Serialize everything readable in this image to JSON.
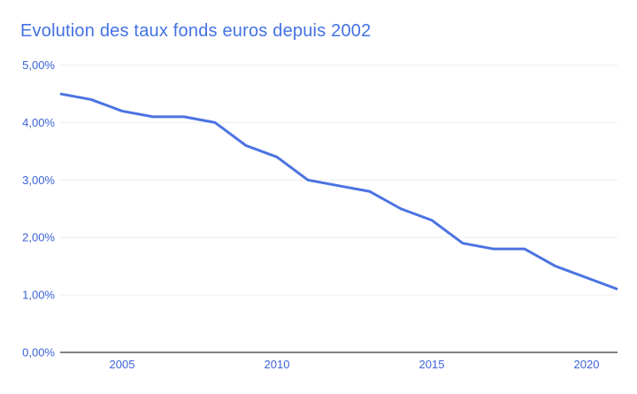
{
  "page": {
    "background": "#ffffff"
  },
  "chart": {
    "title": "Evolution des taux fonds euros depuis 2002",
    "title_color": "#4372e4"
  },
  "chart_data": {
    "type": "line",
    "title": "Evolution des taux fonds euros depuis 2002",
    "x": [
      2003,
      2004,
      2005,
      2006,
      2007,
      2008,
      2009,
      2010,
      2011,
      2012,
      2013,
      2014,
      2015,
      2016,
      2017,
      2018,
      2019,
      2020,
      2021
    ],
    "values": [
      4.5,
      4.4,
      4.2,
      4.1,
      4.1,
      4.0,
      3.6,
      3.4,
      3.0,
      2.9,
      2.8,
      2.5,
      2.3,
      1.9,
      1.8,
      1.8,
      1.5,
      1.3,
      1.1
    ],
    "xlabel": "",
    "ylabel": "",
    "ylim": [
      0,
      5
    ],
    "xlim": [
      2003,
      2021
    ],
    "ytick_values": [
      0,
      1,
      2,
      3,
      4,
      5
    ],
    "ytick_labels": [
      "0,00%",
      "1,00%",
      "2,00%",
      "3,00%",
      "4,00%",
      "5,00%"
    ],
    "xtick_values": [
      2005,
      2010,
      2015,
      2020
    ],
    "xtick_labels": [
      "2005",
      "2010",
      "2015",
      "2020"
    ],
    "grid": "horizontal-only",
    "legend": "none",
    "line_color": "#4b73e2",
    "tick_label_color": "#3c63d8",
    "gridline_color": "#ededed",
    "baseline_color": "#808080"
  }
}
